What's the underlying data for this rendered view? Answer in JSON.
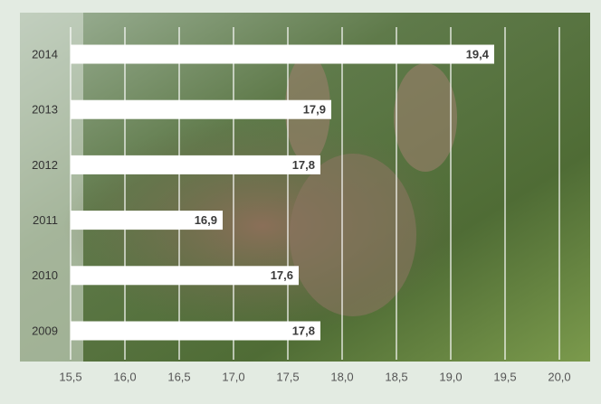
{
  "chart_data": {
    "type": "hbar",
    "categories": [
      "2014",
      "2013",
      "2012",
      "2011",
      "2010",
      "2009"
    ],
    "values": [
      19.4,
      17.9,
      17.8,
      16.9,
      17.6,
      17.8
    ],
    "value_labels": [
      "19,4",
      "17,9",
      "17,8",
      "16,9",
      "17,6",
      "17,8"
    ],
    "color": "#ffffff",
    "xlim": [
      15.5,
      20.0
    ],
    "xticks": [
      {
        "value": 15.5,
        "label": "15,5"
      },
      {
        "value": 16.0,
        "label": "16,0"
      },
      {
        "value": 16.5,
        "label": "16,5"
      },
      {
        "value": 17.0,
        "label": "17,0"
      },
      {
        "value": 17.5,
        "label": "17,5"
      },
      {
        "value": 18.0,
        "label": "18,0"
      },
      {
        "value": 18.5,
        "label": "18,5"
      },
      {
        "value": 19.0,
        "label": "19,0"
      },
      {
        "value": 19.5,
        "label": "19,5"
      },
      {
        "value": 20.0,
        "label": "20,0"
      }
    ],
    "grid": true
  }
}
